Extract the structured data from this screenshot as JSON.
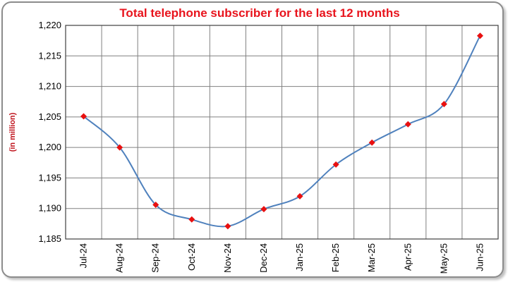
{
  "chart_data": {
    "type": "line",
    "title": "Total telephone subscriber for the last 12 months",
    "ylabel": "(in million)",
    "xlabel": "",
    "categories": [
      "Jul-24",
      "Aug-24",
      "Sep-24",
      "Oct-24",
      "Nov-24",
      "Dec-24",
      "Jan-25",
      "Feb-25",
      "Mar-25",
      "Apr-25",
      "May-25",
      "Jun-25"
    ],
    "series": [
      {
        "values": [
          1205.1,
          1200.0,
          1190.6,
          1188.2,
          1187.1,
          1189.9,
          1192.0,
          1197.2,
          1200.8,
          1203.8,
          1207.1,
          1218.3
        ]
      }
    ],
    "ylim": [
      1185,
      1220
    ],
    "yticks": [
      "1,185",
      "1,190",
      "1,195",
      "1,200",
      "1,205",
      "1,210",
      "1,215",
      "1,220"
    ],
    "grid": true,
    "legend": "none",
    "colors": {
      "title": "#e8141d",
      "line": "#4f81bd",
      "marker": "#e81010",
      "grid": "#808080",
      "ylabel": "#c0141d"
    }
  }
}
